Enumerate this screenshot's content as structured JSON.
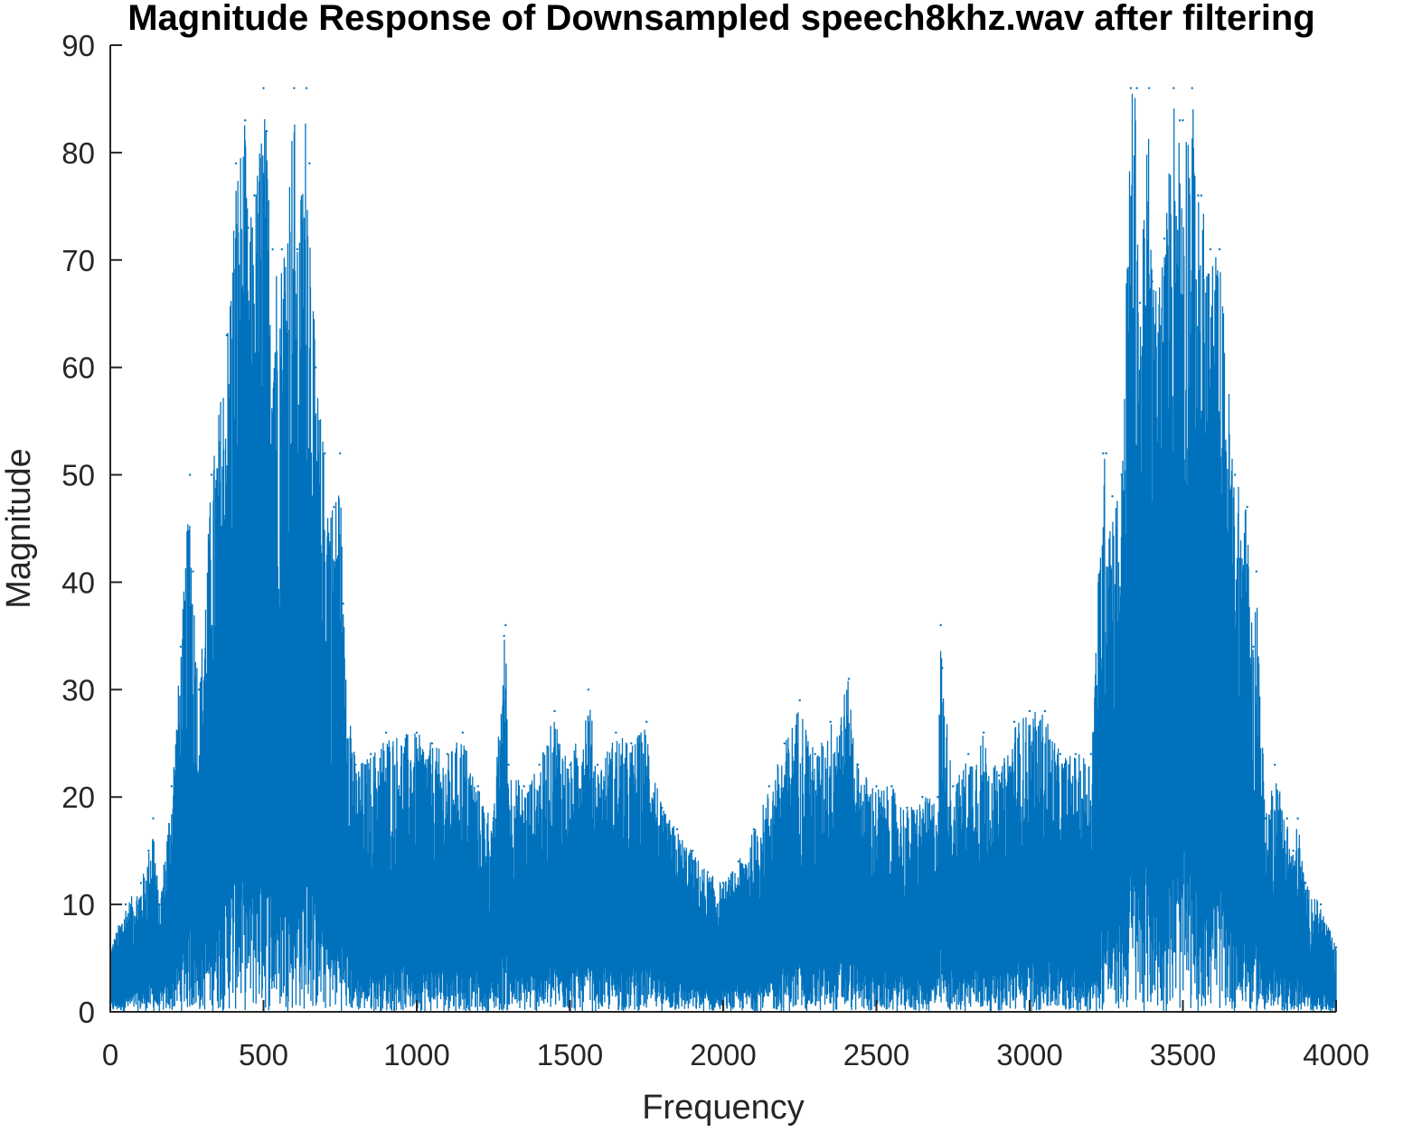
{
  "chart_data": {
    "type": "line",
    "title": "Magnitude Response of Downsampled speech8khz.wav after filtering",
    "xlabel": "Frequency",
    "ylabel": "Magnitude",
    "xlim": [
      0,
      4000
    ],
    "ylim": [
      0,
      90
    ],
    "xticks": [
      0,
      500,
      1000,
      1500,
      2000,
      2500,
      3000,
      3500,
      4000
    ],
    "yticks": [
      0,
      10,
      20,
      30,
      40,
      50,
      60,
      70,
      80,
      90
    ],
    "grid": false,
    "legend": "none",
    "series_color": "#0072BD",
    "series": [
      {
        "x": [
          0,
          50,
          100,
          125,
          140,
          160,
          200,
          230,
          260,
          270,
          290,
          330,
          380,
          410,
          440,
          450,
          470,
          500,
          510,
          530,
          560,
          600,
          610,
          640,
          650,
          670,
          700,
          730,
          750,
          760,
          800,
          850,
          900,
          1000,
          1050,
          1100,
          1150,
          1200,
          1250,
          1285,
          1290,
          1300,
          1350,
          1400,
          1450,
          1500,
          1560,
          1590,
          1650,
          1700,
          1750,
          1800,
          1850,
          1900,
          1950,
          2000,
          2050,
          2100,
          2150,
          2200,
          2250,
          2300,
          2350,
          2410,
          2440,
          2500,
          2550,
          2600,
          2650,
          2700,
          2710,
          2715,
          2750,
          2800,
          2850,
          2900,
          2950,
          3000,
          3050,
          3100,
          3150,
          3200,
          3240,
          3250,
          3270,
          3300,
          3330,
          3350,
          3360,
          3390,
          3400,
          3440,
          3470,
          3490,
          3500,
          3530,
          3550,
          3560,
          3590,
          3620,
          3670,
          3710,
          3730,
          3740,
          3770,
          3800,
          3840,
          3860,
          3875,
          3900,
          3950,
          4000
        ],
        "y": [
          6,
          10,
          12,
          15,
          18,
          10,
          21,
          34,
          50,
          41,
          30,
          50,
          63,
          79,
          83,
          73,
          76,
          86,
          82,
          71,
          71,
          86,
          71,
          86,
          79,
          60,
          52,
          47,
          52,
          38,
          23,
          24,
          26,
          26,
          25,
          24,
          26,
          21,
          18,
          35,
          36,
          23,
          21,
          23,
          28,
          23,
          30,
          23,
          26,
          25,
          27,
          19,
          17,
          15,
          13,
          12,
          14,
          17,
          21,
          25,
          29,
          24,
          27,
          31,
          23,
          21,
          21,
          19,
          20,
          20,
          36,
          32,
          21,
          24,
          26,
          22,
          27,
          28,
          28,
          24,
          24,
          24,
          52,
          52,
          48,
          50,
          86,
          86,
          66,
          86,
          68,
          72,
          86,
          83,
          83,
          86,
          76,
          76,
          71,
          71,
          50,
          47,
          34,
          41,
          18,
          23,
          18,
          15,
          18,
          12,
          10,
          6
        ]
      }
    ]
  }
}
